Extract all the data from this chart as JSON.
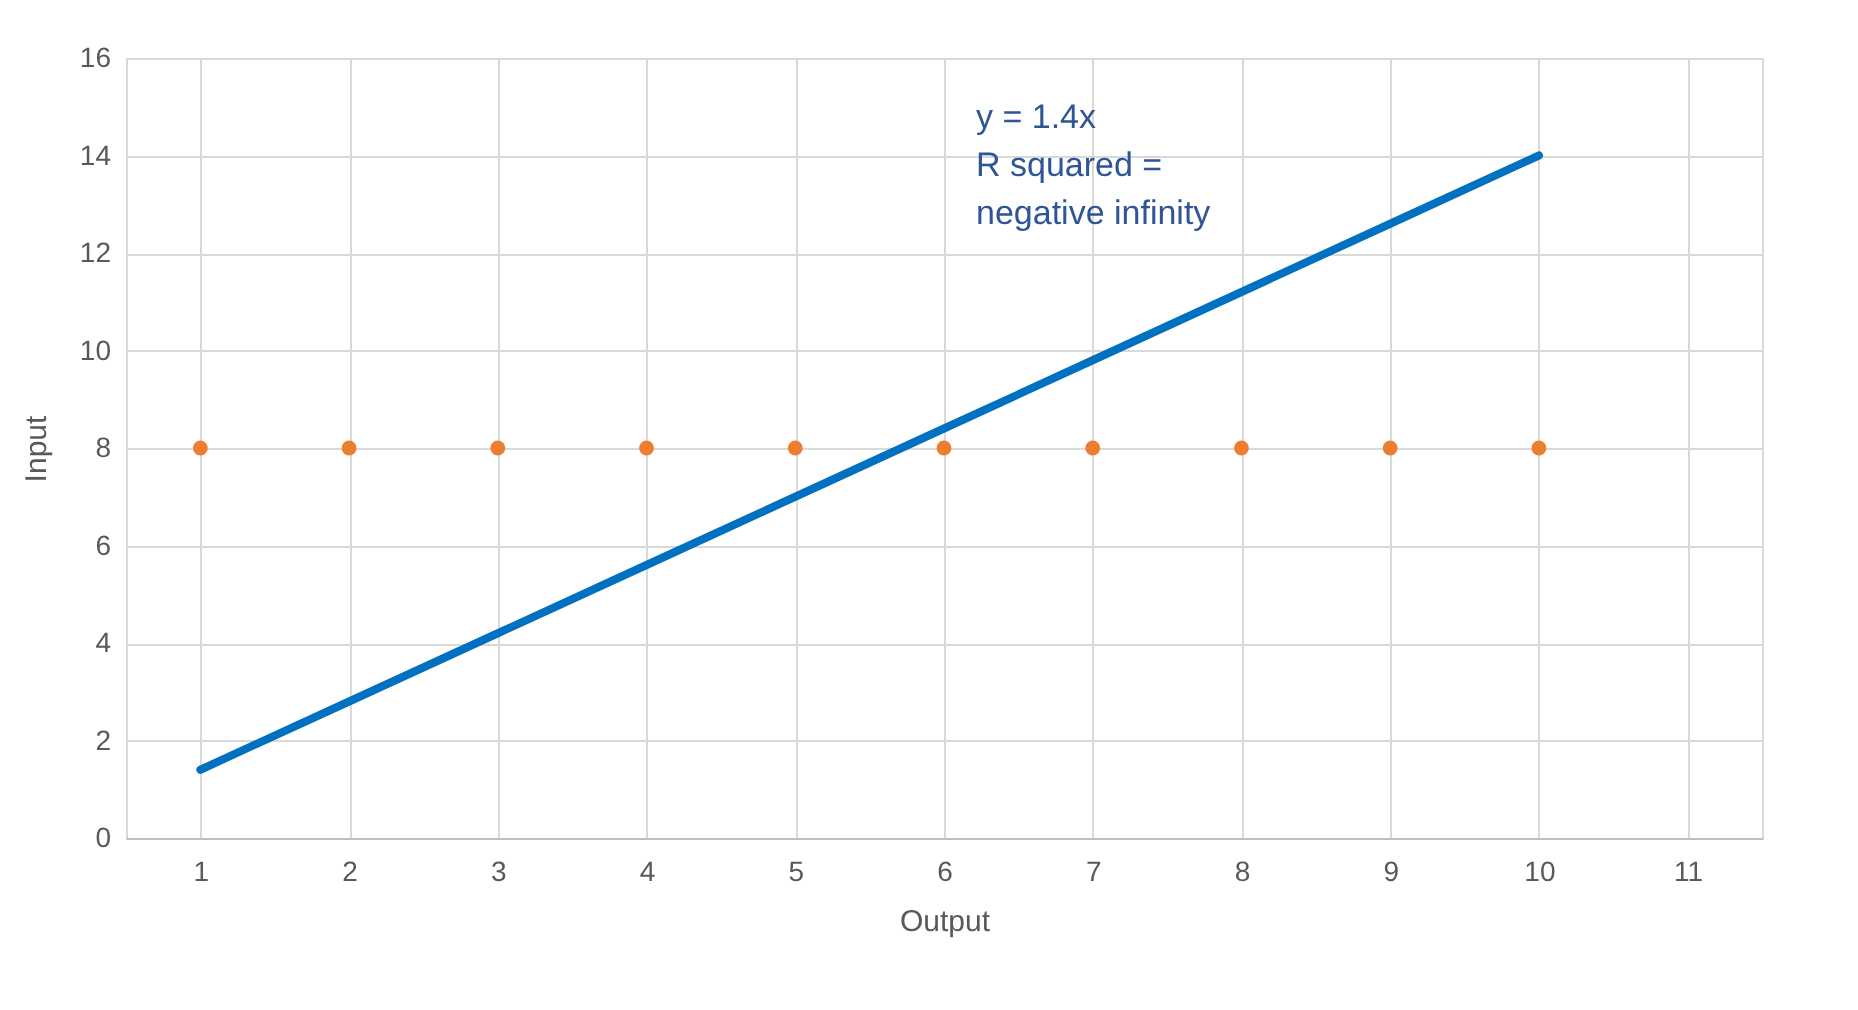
{
  "chart_data": {
    "type": "scatter",
    "xlabel": "Output",
    "ylabel": "Input",
    "categories": [
      "1",
      "2",
      "3",
      "4",
      "5",
      "6",
      "7",
      "8",
      "9",
      "10",
      "11"
    ],
    "series": [
      {
        "type": "scatter",
        "color": "#ed7d31",
        "marker": "circle",
        "values": [
          8,
          8,
          8,
          8,
          8,
          8,
          8,
          8,
          8,
          8,
          null
        ]
      },
      {
        "type": "line",
        "color": "#0070c0",
        "line_style": "solid",
        "values": [
          1.4,
          2.8,
          4.2,
          5.6,
          7,
          8.4,
          9.8,
          11.2,
          12.6,
          14,
          null
        ]
      }
    ],
    "ylim": [
      0,
      16
    ],
    "yticks": [
      0,
      2,
      4,
      6,
      8,
      10,
      12,
      14,
      16
    ],
    "grid": true,
    "annotations": [
      "y = 1.4x\nR squared =\nnegative infinity"
    ]
  }
}
